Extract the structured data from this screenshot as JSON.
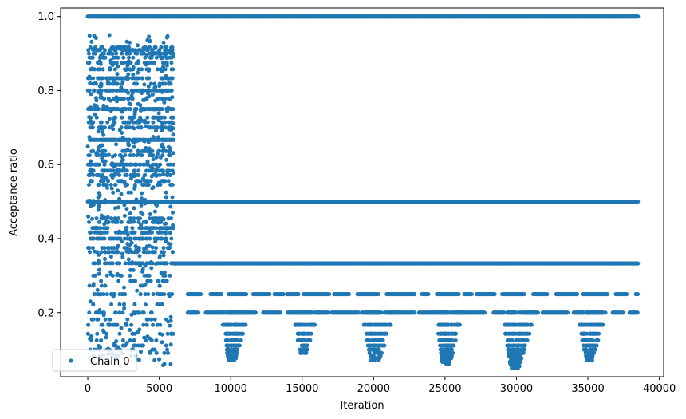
{
  "chart_data": {
    "type": "scatter",
    "xlabel": "Iteration",
    "ylabel": "Acceptance ratio",
    "xlim": [
      -1900,
      40300
    ],
    "ylim": [
      0.027,
      1.023
    ],
    "xticks": [
      0,
      5000,
      10000,
      15000,
      20000,
      25000,
      30000,
      35000,
      40000
    ],
    "xtick_labels": [
      "0",
      "5000",
      "10000",
      "15000",
      "20000",
      "25000",
      "30000",
      "35000",
      "40000"
    ],
    "yticks": [
      0.2,
      0.4,
      0.6,
      0.8,
      1.0
    ],
    "ytick_labels": [
      "0.2",
      "0.4",
      "0.6",
      "0.8",
      "1.0"
    ],
    "grid": false,
    "legend": {
      "placement": "lower-left",
      "entries": [
        "Chain 0"
      ]
    },
    "series": [
      {
        "name": "Chain 0",
        "color": "#1f77b4",
        "marker": "dot",
        "segments": [
          {
            "x_start": 0,
            "x_end": 38500,
            "y": 1.0,
            "kind": "continuous"
          },
          {
            "x_start": 0,
            "x_end": 38500,
            "y": 0.5,
            "kind": "continuous"
          },
          {
            "x_start": 0,
            "x_end": 6000,
            "y_range": [
              0.05,
              0.95
            ],
            "kind": "dense-warmup"
          },
          {
            "x_start": 6000,
            "x_end": 38500,
            "y": 0.333,
            "kind": "continuous"
          },
          {
            "x_start": 7000,
            "x_end": 38500,
            "y": 0.25,
            "kind": "intermittent"
          },
          {
            "x_start": 7000,
            "x_end": 38500,
            "y": 0.2,
            "kind": "intermittent"
          }
        ],
        "clusters": [
          {
            "x_center": 10000,
            "x_width": 2000,
            "y_min": 0.07,
            "y_max": 0.2
          },
          {
            "x_center": 15000,
            "x_width": 1800,
            "y_min": 0.09,
            "y_max": 0.2
          },
          {
            "x_center": 20000,
            "x_width": 2400,
            "y_min": 0.07,
            "y_max": 0.2
          },
          {
            "x_center": 25000,
            "x_width": 2000,
            "y_min": 0.06,
            "y_max": 0.2
          },
          {
            "x_center": 29800,
            "x_width": 2400,
            "y_min": 0.05,
            "y_max": 0.2
          },
          {
            "x_center": 35000,
            "x_width": 2000,
            "y_min": 0.07,
            "y_max": 0.2
          }
        ]
      }
    ]
  }
}
